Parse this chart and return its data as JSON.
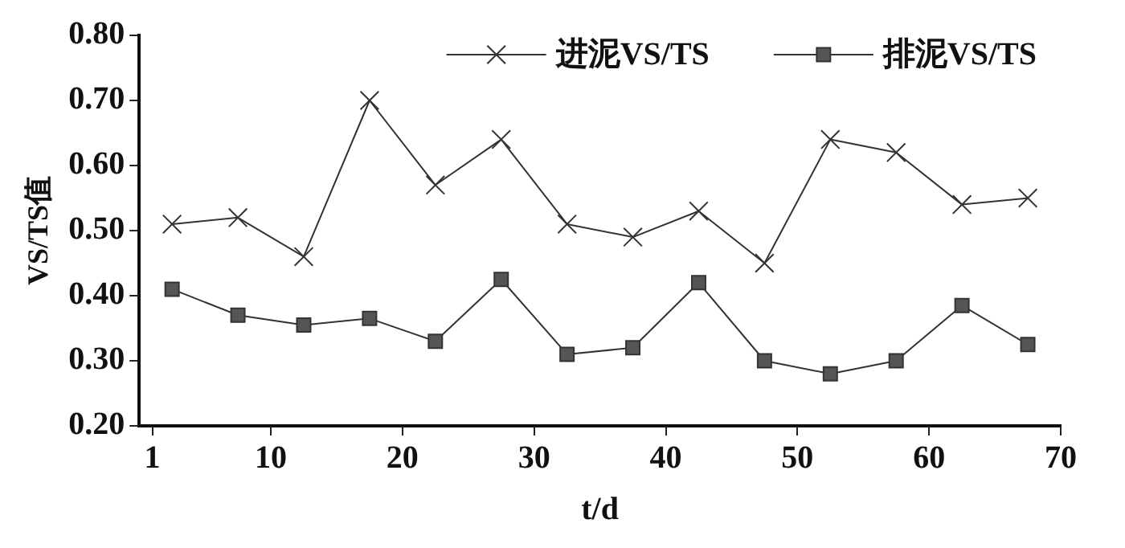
{
  "chart_data": {
    "type": "line",
    "xlabel": "t/d",
    "ylabel": "VS/TS值",
    "x": [
      2.5,
      7.5,
      12.5,
      17.5,
      22.5,
      27.5,
      32.5,
      37.5,
      42.5,
      47.5,
      52.5,
      57.5,
      62.5,
      67.5
    ],
    "series": [
      {
        "name": "进泥VS/TS",
        "color": "#333333",
        "marker": "cross",
        "values": [
          0.51,
          0.52,
          0.46,
          0.7,
          0.57,
          0.64,
          0.51,
          0.49,
          0.53,
          0.45,
          0.64,
          0.62,
          0.54,
          0.55
        ]
      },
      {
        "name": "排泥VS/TS",
        "color": "#333333",
        "marker": "square",
        "values": [
          0.41,
          0.37,
          0.355,
          0.365,
          0.33,
          0.425,
          0.31,
          0.32,
          0.42,
          0.3,
          0.28,
          0.3,
          0.385,
          0.325
        ]
      }
    ],
    "xlim": [
      0,
      70
    ],
    "xticks": [
      1,
      10,
      20,
      30,
      40,
      50,
      60,
      70
    ],
    "ylim": [
      0.2,
      0.8
    ],
    "yticks": [
      {
        "value": 0.2,
        "label": "0.20"
      },
      {
        "value": 0.3,
        "label": "0.30"
      },
      {
        "value": 0.4,
        "label": "0.40"
      },
      {
        "value": 0.5,
        "label": "0.50"
      },
      {
        "value": 0.6,
        "label": "0.60"
      },
      {
        "value": 0.7,
        "label": "0.70"
      },
      {
        "value": 0.8,
        "label": "0.80"
      }
    ],
    "grid": false,
    "legend": "top right",
    "line_style": "solid"
  }
}
